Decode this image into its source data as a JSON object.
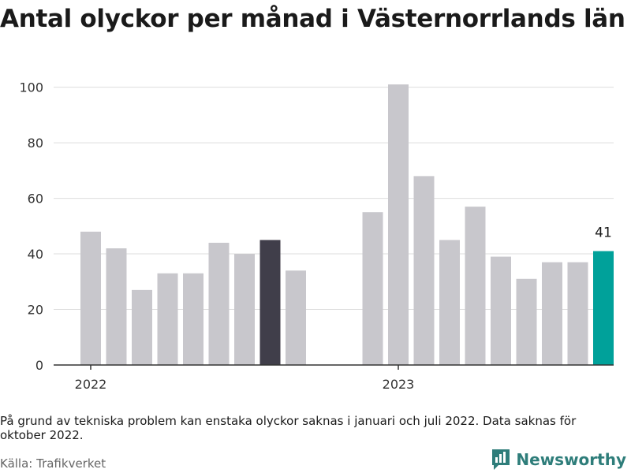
{
  "title": "Antal olyckor per månad i Västernorrlands län",
  "note": "På grund av tekniska problem kan enstaka olyckor saknas i januari och juli 2022. Data saknas för oktober 2022.",
  "source": "Källa: Trafikverket",
  "brand": {
    "name": "Newsworthy",
    "icon": "newsworthy-logo-icon",
    "color": "#2e7d7a"
  },
  "chart_data": {
    "type": "bar",
    "x_tick_labels": [
      {
        "label": "2022",
        "at": "2022-01"
      },
      {
        "label": "2023",
        "at": "2023-01"
      }
    ],
    "y_ticks": [
      0,
      20,
      40,
      60,
      80,
      100
    ],
    "ylim": [
      0,
      105
    ],
    "grid": true,
    "colors": {
      "default": "#c8c7cc",
      "highlight": "#403e4a",
      "latest": "#00a19a"
    },
    "points": [
      {
        "month": "2022-01",
        "value": 48
      },
      {
        "month": "2022-02",
        "value": 42
      },
      {
        "month": "2022-03",
        "value": 27
      },
      {
        "month": "2022-04",
        "value": 33
      },
      {
        "month": "2022-05",
        "value": 33
      },
      {
        "month": "2022-06",
        "value": 44
      },
      {
        "month": "2022-07",
        "value": 40
      },
      {
        "month": "2022-08",
        "value": 45,
        "highlight": true
      },
      {
        "month": "2022-09",
        "value": 34
      },
      {
        "month": "2022-10",
        "value": null
      },
      {
        "month": "2022-11",
        "value": null
      },
      {
        "month": "2022-12",
        "value": 55
      },
      {
        "month": "2023-01",
        "value": 101
      },
      {
        "month": "2023-02",
        "value": 68
      },
      {
        "month": "2023-03",
        "value": 45
      },
      {
        "month": "2023-04",
        "value": 57
      },
      {
        "month": "2023-05",
        "value": 39
      },
      {
        "month": "2023-06",
        "value": 31
      },
      {
        "month": "2023-07",
        "value": 37
      },
      {
        "month": "2023-08",
        "value": 37
      },
      {
        "month": "2023-09",
        "value": 41,
        "latest": true,
        "label": "41"
      }
    ]
  }
}
